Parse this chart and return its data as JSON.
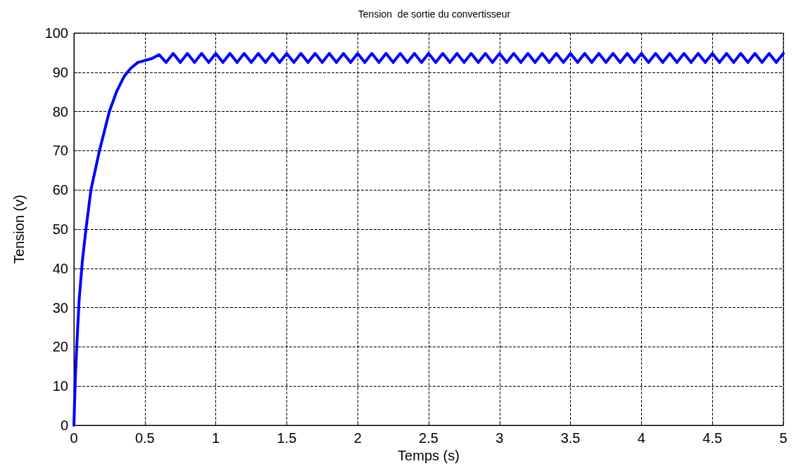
{
  "chart_data": {
    "type": "line",
    "title": "Tension  de sortie du convertisseur",
    "xlabel": "Temps (s)",
    "ylabel": "Tension (v)",
    "xlim": [
      0,
      5
    ],
    "xticks": [
      0,
      0.5,
      1,
      1.5,
      2,
      2.5,
      3,
      3.5,
      4,
      4.5,
      5
    ],
    "ylim": [
      0,
      100
    ],
    "yticks": [
      0,
      10,
      20,
      30,
      40,
      50,
      60,
      70,
      80,
      90,
      100
    ],
    "grid": true,
    "marker": "none",
    "line_style": "solid",
    "series": [
      {
        "color": "#0000ff",
        "x": [
          0,
          0.01,
          0.02,
          0.037,
          0.06,
          0.085,
          0.12,
          0.18,
          0.25,
          0.3,
          0.355,
          0.4,
          0.45,
          0.5,
          0.55,
          0.6,
          0.65,
          0.7,
          0.75,
          0.8,
          0.85,
          0.9,
          0.95,
          1,
          1.05,
          1.1,
          1.15,
          1.2,
          1.25,
          1.3,
          1.35,
          1.4,
          1.45,
          1.5,
          1.55,
          1.6,
          1.65,
          1.7,
          1.75,
          1.8,
          1.85,
          1.9,
          1.95,
          2,
          2.05,
          2.1,
          2.15,
          2.2,
          2.25,
          2.3,
          2.35,
          2.4,
          2.45,
          2.5,
          2.55,
          2.6,
          2.65,
          2.7,
          2.75,
          2.8,
          2.85,
          2.9,
          2.95,
          3,
          3.05,
          3.1,
          3.15,
          3.2,
          3.25,
          3.3,
          3.35,
          3.4,
          3.45,
          3.5,
          3.55,
          3.6,
          3.65,
          3.7,
          3.75,
          3.8,
          3.85,
          3.9,
          3.95,
          4,
          4.05,
          4.1,
          4.15,
          4.2,
          4.25,
          4.3,
          4.35,
          4.4,
          4.45,
          4.5,
          4.55,
          4.6,
          4.65,
          4.7,
          4.75,
          4.8,
          4.85,
          4.9,
          4.95,
          5
        ],
        "values": [
          0,
          12,
          20,
          32,
          42,
          50,
          60,
          70,
          80,
          85,
          89,
          91,
          92.5,
          93,
          93.5,
          94.5,
          92.5,
          94.8,
          92.5,
          94.8,
          92.5,
          94.8,
          92.5,
          94.8,
          92.5,
          94.8,
          92.5,
          94.8,
          92.5,
          94.8,
          92.5,
          94.8,
          92.5,
          94.8,
          92.5,
          94.8,
          92.5,
          94.8,
          92.5,
          94.8,
          92.5,
          94.8,
          92.5,
          94.8,
          92.5,
          94.8,
          92.5,
          94.8,
          92.5,
          94.8,
          92.5,
          94.8,
          92.5,
          94.8,
          92.5,
          94.8,
          92.5,
          94.8,
          92.5,
          94.8,
          92.5,
          94.8,
          92.5,
          94.8,
          92.5,
          94.8,
          92.5,
          94.8,
          92.5,
          94.8,
          92.5,
          94.8,
          92.5,
          94.8,
          92.5,
          94.8,
          92.5,
          94.8,
          92.5,
          94.8,
          92.5,
          94.8,
          92.5,
          94.8,
          92.5,
          94.8,
          92.5,
          94.8,
          92.5,
          94.8,
          92.5,
          94.8,
          92.5,
          94.8,
          92.5,
          94.8,
          92.5,
          94.8,
          92.5,
          94.8,
          92.5,
          94.8,
          92.5,
          94.8
        ]
      }
    ]
  }
}
